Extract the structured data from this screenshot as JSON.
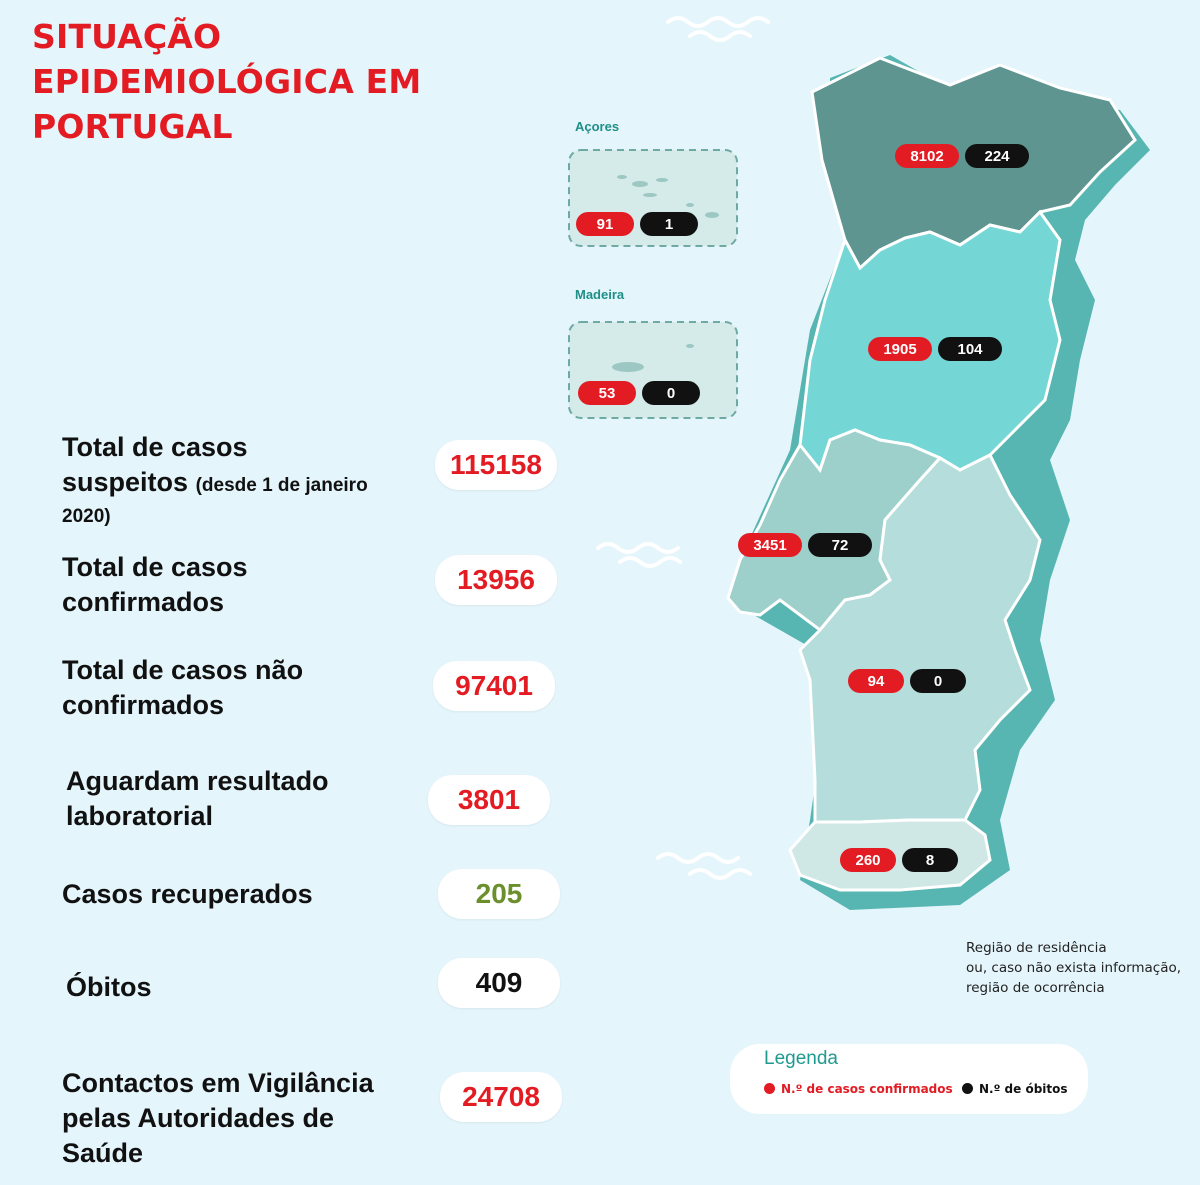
{
  "title_lines": [
    "SITUAÇÃO",
    "EPIDEMIOLÓGICA EM",
    "PORTUGAL"
  ],
  "stats": [
    {
      "label_lines": [
        "Total de casos",
        "suspeitos"
      ],
      "note": "(desde 1 de janeiro",
      "note2": "2020)",
      "value": "115158"
    },
    {
      "label_lines": [
        "Total de casos",
        "confirmados"
      ],
      "value": "13956"
    },
    {
      "label_lines": [
        "Total de casos não",
        "confirmados"
      ],
      "value": "97401"
    },
    {
      "label_lines": [
        "Aguardam resultado",
        "laboratorial"
      ],
      "value": "3801"
    },
    {
      "label_lines": [
        "Casos recuperados"
      ],
      "value": "205"
    },
    {
      "label_lines": [
        "Óbitos"
      ],
      "value": "409"
    },
    {
      "label_lines": [
        "Contactos em Vigilância",
        "pelas Autoridades de",
        "Saúde"
      ],
      "value": "24708"
    }
  ],
  "islands": {
    "acores": {
      "name": "Açores",
      "cases": "91",
      "deaths": "1"
    },
    "madeira": {
      "name": "Madeira",
      "cases": "53",
      "deaths": "0"
    }
  },
  "regions": {
    "norte": {
      "cases": "8102",
      "deaths": "224"
    },
    "centro": {
      "cases": "1905",
      "deaths": "104"
    },
    "lisboa": {
      "cases": "3451",
      "deaths": "72"
    },
    "alentejo": {
      "cases": "94",
      "deaths": "0"
    },
    "algarve": {
      "cases": "260",
      "deaths": "8"
    }
  },
  "note_lines": [
    "Região de residência",
    "ou, caso não exista informação,",
    "região de ocorrência"
  ],
  "legend": {
    "title": "Legenda",
    "cases_label": "N.º de casos confirmados",
    "deaths_label": "N.º de óbitos"
  },
  "colors": {
    "title_red": "#e31b23",
    "norte": "#5e9590",
    "centro": "#75d6d6",
    "lisboa": "#9dcfcb",
    "alentejo": "#b4dddb",
    "algarve": "#cfe8e6",
    "recovered_green": "#6a8f2b"
  }
}
